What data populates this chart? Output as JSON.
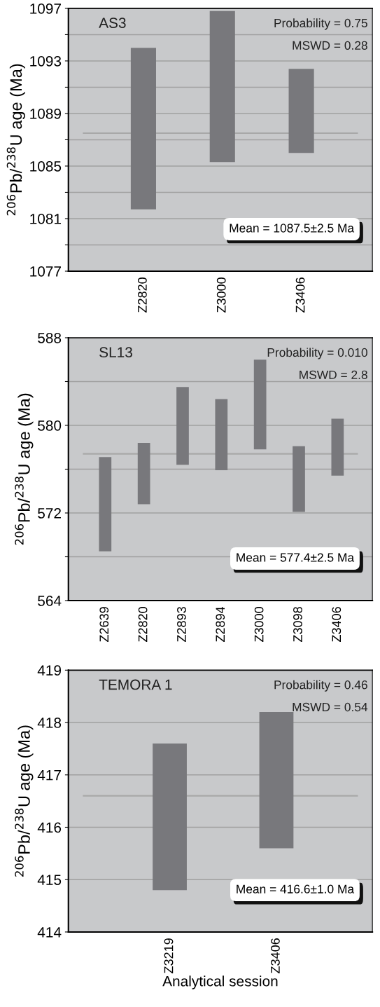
{
  "chart_data": [
    {
      "type": "bar",
      "title": "AS3",
      "ylabel": "$^{206}$Pb/$^{238}$U age (Ma)",
      "categories": [
        "Z2820",
        "Z3000",
        "Z3406"
      ],
      "base": [
        1081.7,
        1085.3,
        1086.0
      ],
      "values": [
        12.3,
        11.5,
        6.4
      ],
      "color": "#78787c",
      "ylim": [
        1077,
        1097
      ],
      "yticks": [
        1077,
        {
          "value": 1079,
          "label": null
        },
        1081,
        {
          "value": 1083,
          "label": null
        },
        1085,
        {
          "value": 1087,
          "label": null
        },
        1089,
        {
          "value": 1091,
          "label": null
        },
        1093,
        {
          "value": 1095,
          "label": null
        },
        1097
      ],
      "grid": "y",
      "ref_lines": [
        {
          "axis": "y",
          "value": 1087.5,
          "color": "#a8a8a8"
        }
      ],
      "annotations": [
        "Probability = 0.75",
        "MSWD = 0.28",
        "Mean = 1087.5±2.5 Ma"
      ]
    },
    {
      "type": "bar",
      "title": "SL13",
      "ylabel": "$^{206}$Pb/$^{238}$U age (Ma)",
      "categories": [
        "Z2639",
        "Z2820",
        "Z2893",
        "Z2894",
        "Z3000",
        "Z3098",
        "Z3406"
      ],
      "base": [
        568.5,
        572.8,
        576.4,
        575.9,
        577.8,
        572.1,
        575.4
      ],
      "values": [
        8.6,
        5.6,
        7.1,
        6.5,
        8.2,
        6.0,
        5.2
      ],
      "color": "#78787c",
      "ylim": [
        564,
        588
      ],
      "yticks": [
        564,
        {
          "value": 568,
          "label": null
        },
        572,
        {
          "value": 576,
          "label": null
        },
        580,
        {
          "value": 584,
          "label": null
        },
        588
      ],
      "grid": "y",
      "ref_lines": [
        {
          "axis": "y",
          "value": 577.4,
          "color": "#a8a8a8"
        }
      ],
      "annotations": [
        "Probability = 0.010",
        "MSWD = 2.8",
        "Mean = 577.4±2.5 Ma"
      ]
    },
    {
      "type": "bar",
      "title": "TEMORA 1",
      "ylabel": "$^{206}$Pb/$^{238}$U age (Ma)",
      "xlabel": "Analytical session",
      "categories": [
        "Z3219",
        "Z3406"
      ],
      "base": [
        414.8,
        415.6
      ],
      "values": [
        2.8,
        2.6
      ],
      "color": "#78787c",
      "ylim": [
        414,
        419
      ],
      "yticks": [
        414,
        415,
        416,
        417,
        418,
        419
      ],
      "grid": "y",
      "ref_lines": [
        {
          "axis": "y",
          "value": 416.6,
          "color": "#a8a8a8"
        }
      ],
      "annotations": [
        "Probability = 0.46",
        "MSWD = 0.54",
        "Mean = 416.6±1.0 Ma"
      ]
    }
  ]
}
